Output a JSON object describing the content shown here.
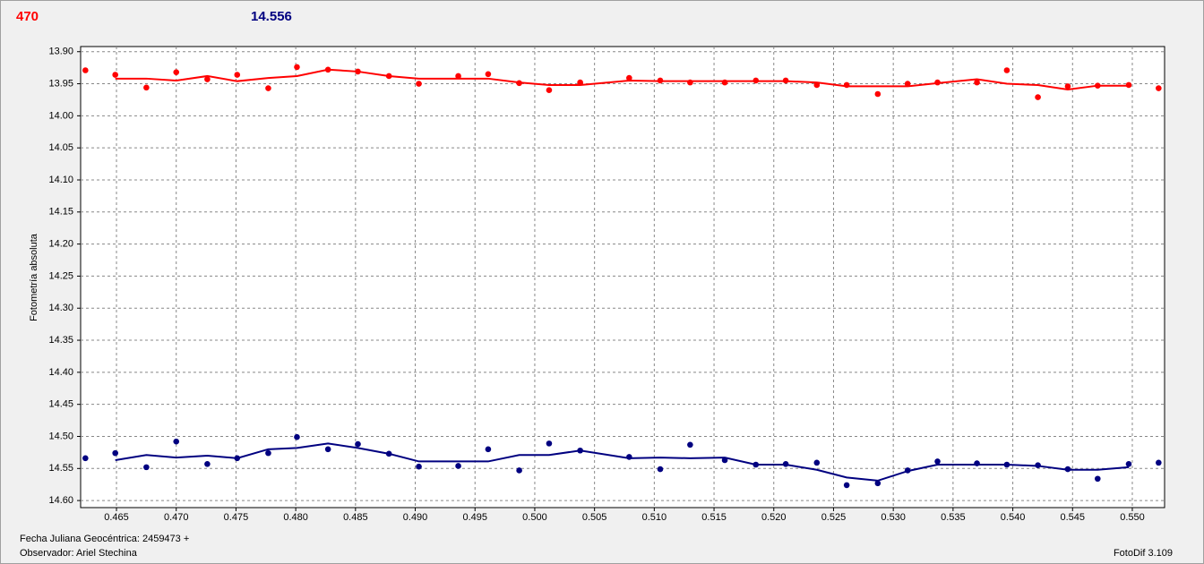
{
  "chart_data": {
    "type": "scatter",
    "header": {
      "left": "470",
      "right": "14.556"
    },
    "y_label": "Fotometría absoluta",
    "footer": {
      "date": "Fecha Juliana Geocéntrica: 2459473 +",
      "observer": "Observador: Ariel Stechina",
      "software": "FotoDif 3.109"
    },
    "xlim": [
      0.462,
      0.5527
    ],
    "ylim": [
      14.611,
      13.892
    ],
    "grid": true,
    "xticks": [
      0.465,
      {
        "value": 0.47,
        "label": "0.470"
      },
      0.475,
      {
        "value": 0.48,
        "label": "0.480"
      },
      0.485,
      {
        "value": 0.49,
        "label": "0.490"
      },
      0.495,
      {
        "value": 0.5,
        "label": "0.500"
      },
      0.505,
      {
        "value": 0.51,
        "label": "0.510"
      },
      0.515,
      {
        "value": 0.52,
        "label": "0.520"
      },
      0.525,
      {
        "value": 0.53,
        "label": "0.530"
      },
      0.535,
      {
        "value": 0.54,
        "label": "0.540"
      },
      0.545,
      {
        "value": 0.55,
        "label": "0.550"
      }
    ],
    "yticks": [
      {
        "value": 13.9,
        "label": "13.90"
      },
      13.95,
      {
        "value": 14.0,
        "label": "14.00"
      },
      14.05,
      {
        "value": 14.1,
        "label": "14.10"
      },
      14.15,
      {
        "value": 14.2,
        "label": "14.20"
      },
      14.25,
      {
        "value": 14.3,
        "label": "14.30"
      },
      14.35,
      {
        "value": 14.4,
        "label": "14.40"
      },
      14.45,
      {
        "value": 14.5,
        "label": "14.50"
      },
      14.55,
      {
        "value": 14.6,
        "label": "14.60"
      }
    ],
    "x": [
      0.4624,
      0.4649,
      0.4675,
      0.47,
      0.4726,
      0.4751,
      0.4777,
      0.4801,
      0.4827,
      0.4852,
      0.4878,
      0.4903,
      0.4936,
      0.4961,
      0.4987,
      0.5012,
      0.5038,
      0.5079,
      0.5105,
      0.513,
      0.5159,
      0.5185,
      0.521,
      0.5236,
      0.5261,
      0.5287,
      0.5312,
      0.5337,
      0.537,
      0.5395,
      0.5421,
      0.5446,
      0.5471,
      0.5497,
      0.5522
    ],
    "series": [
      {
        "style": "markers",
        "color": "#ff0000",
        "values": [
          13.929,
          13.936,
          13.956,
          13.932,
          13.943,
          13.936,
          13.957,
          13.924,
          13.928,
          13.931,
          13.938,
          13.95,
          13.938,
          13.935,
          13.949,
          13.96,
          13.948,
          13.941,
          13.945,
          13.948,
          13.948,
          13.945,
          13.945,
          13.952,
          13.952,
          13.966,
          13.95,
          13.948,
          13.948,
          13.929,
          13.971,
          13.954,
          13.953,
          13.952,
          13.957
        ]
      },
      {
        "style": "line",
        "color": "#ff0000",
        "values": [
          null,
          13.942,
          13.942,
          13.945,
          13.938,
          13.946,
          13.941,
          13.938,
          13.928,
          13.931,
          13.938,
          13.942,
          13.942,
          13.942,
          13.948,
          13.952,
          13.952,
          13.945,
          13.946,
          13.946,
          13.946,
          13.946,
          13.946,
          13.948,
          13.954,
          13.954,
          13.954,
          13.949,
          13.943,
          13.95,
          13.952,
          13.959,
          13.953,
          13.953,
          null
        ]
      },
      {
        "style": "markers",
        "color": "#000080",
        "values": [
          14.534,
          14.526,
          14.548,
          14.508,
          14.543,
          14.534,
          14.526,
          14.501,
          14.52,
          14.512,
          14.527,
          14.547,
          14.546,
          14.52,
          14.553,
          14.511,
          14.522,
          14.532,
          14.551,
          14.513,
          14.537,
          14.544,
          14.543,
          14.541,
          14.576,
          14.573,
          14.553,
          14.539,
          14.542,
          14.544,
          14.545,
          14.551,
          14.566,
          14.543,
          14.541
        ]
      },
      {
        "style": "line",
        "color": "#000080",
        "values": [
          null,
          14.537,
          14.529,
          14.533,
          14.53,
          14.534,
          14.52,
          14.518,
          14.511,
          14.518,
          14.527,
          14.539,
          14.539,
          14.539,
          14.529,
          14.529,
          14.522,
          14.534,
          14.533,
          14.534,
          14.533,
          14.544,
          14.544,
          14.552,
          14.564,
          14.569,
          14.554,
          14.544,
          14.544,
          14.544,
          14.546,
          14.552,
          14.552,
          14.548,
          null
        ]
      }
    ]
  }
}
